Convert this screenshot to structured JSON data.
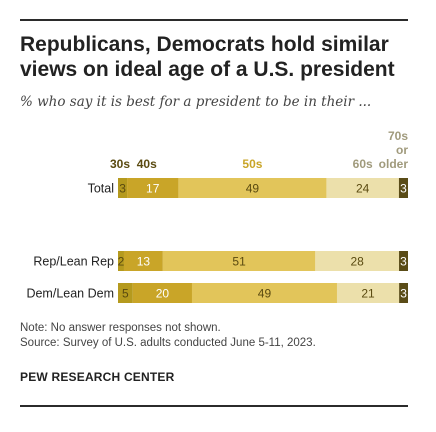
{
  "title": "Republicans, Democrats hold similar views on ideal age of a U.S. president",
  "subtitle": "% who say it is best for a president to be in their ...",
  "note": "Note: No answer responses not shown.",
  "source": "Source: Survey of U.S. adults conducted June 5-11, 2023.",
  "org": "PEW RESEARCH CENTER",
  "colors": {
    "30s": "#b59a1e",
    "40s": "#c9a528",
    "50s": "#e2c55a",
    "60s": "#ece0ab",
    "70s": "#5a4c17",
    "label_30s": "#5a4a10",
    "label_60s": "#a09a7c"
  },
  "chart_data": {
    "type": "bar",
    "stacked": true,
    "orientation": "horizontal",
    "categories": [
      "Total",
      "Rep/Lean Rep",
      "Dem/Lean Dem"
    ],
    "series": [
      {
        "name": "30s",
        "values": [
          3,
          2,
          5
        ]
      },
      {
        "name": "40s",
        "values": [
          17,
          13,
          20
        ]
      },
      {
        "name": "50s",
        "values": [
          49,
          51,
          49
        ]
      },
      {
        "name": "60s",
        "values": [
          24,
          28,
          21
        ]
      },
      {
        "name": "70s or older",
        "values": [
          3,
          3,
          3
        ]
      }
    ]
  }
}
